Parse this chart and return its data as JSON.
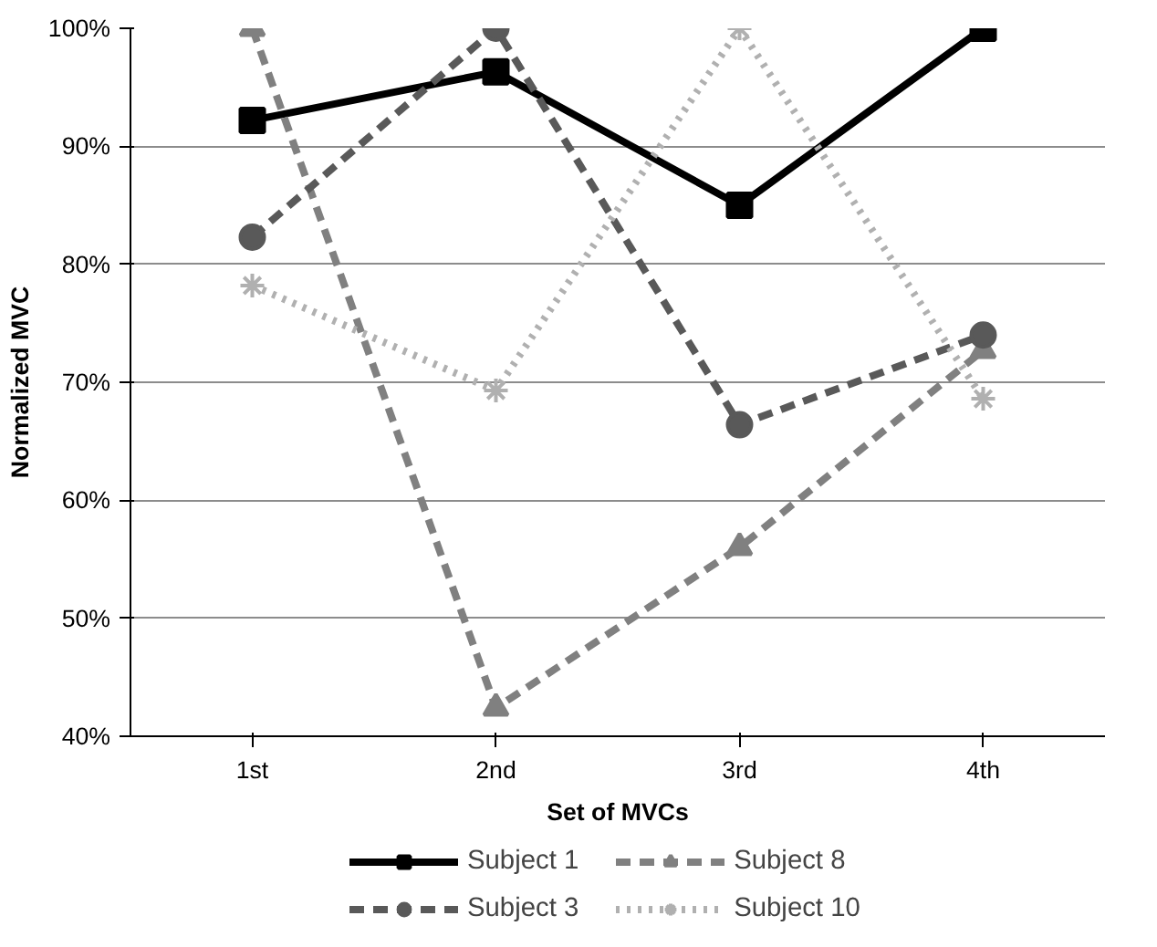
{
  "chart_data": {
    "type": "line",
    "xlabel": "Set of MVCs",
    "ylabel": "Normalized MVC",
    "categories": [
      "1st",
      "2nd",
      "3rd",
      "4th"
    ],
    "ylim": [
      40,
      100
    ],
    "yticks": [
      {
        "value": 40,
        "label": "40%"
      },
      {
        "value": 50,
        "label": "50%"
      },
      {
        "value": 60,
        "label": "60%"
      },
      {
        "value": 70,
        "label": "70%"
      },
      {
        "value": 80,
        "label": "80%"
      },
      {
        "value": 90,
        "label": "90%"
      },
      {
        "value": 100,
        "label": "100%"
      }
    ],
    "grid": "y",
    "legend": "bottom",
    "series": [
      {
        "name": "Subject 1",
        "color": "#000000",
        "marker": "square",
        "line_style": "solid",
        "values": [
          92.2,
          96.3,
          85.0,
          100
        ]
      },
      {
        "name": "Subject 8",
        "color": "#808080",
        "marker": "triangle",
        "line_style": "dashed",
        "values": [
          100,
          42.4,
          56.0,
          72.7
        ]
      },
      {
        "name": "Subject 3",
        "color": "#595959",
        "marker": "circle",
        "line_style": "dashed",
        "values": [
          82.3,
          100,
          66.4,
          74.0
        ]
      },
      {
        "name": "Subject 10",
        "color": "#b0b0b0",
        "marker": "cross",
        "line_style": "dotted",
        "values": [
          78.2,
          69.3,
          100,
          68.6
        ]
      }
    ]
  }
}
